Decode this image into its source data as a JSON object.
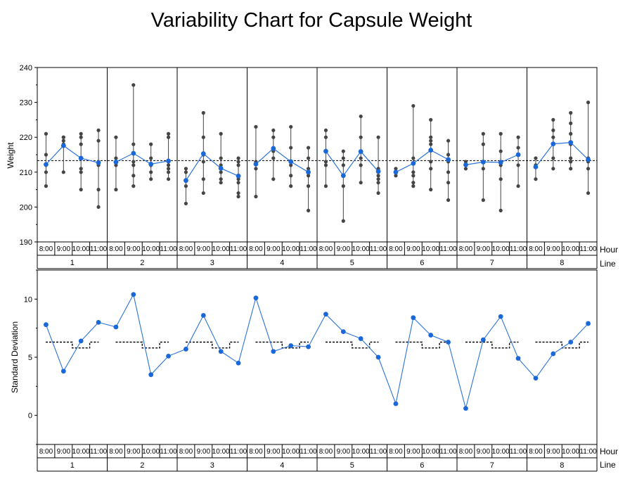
{
  "title": "Variability Chart for Capsule Weight",
  "axis_labels": {
    "weight_y": "Weight",
    "sd_y": "Standard Deviation",
    "hour": "Hour",
    "line": "Line"
  },
  "chart_data": [
    {
      "type": "scatter",
      "name": "weight-panel",
      "ylabel": "Weight",
      "ylim": [
        190,
        240
      ],
      "yticks": [
        190,
        200,
        210,
        220,
        230,
        240
      ],
      "grand_mean": 213.3,
      "groups": [
        "1",
        "2",
        "3",
        "4",
        "5",
        "6",
        "7",
        "8"
      ],
      "subgroups": [
        "8:00",
        "9:00",
        "10:00",
        "11:00"
      ],
      "group_label": "Line",
      "subgroup_label": "Hour",
      "points": [
        [
          [
            206,
            210,
            212,
            215,
            221
          ],
          [
            210,
            218,
            219,
            220,
            220
          ],
          [
            205,
            210,
            211,
            214,
            218,
            220,
            221
          ],
          [
            200,
            205,
            212,
            213,
            219,
            222
          ]
        ],
        [
          [
            205,
            212,
            213,
            214,
            220
          ],
          [
            206,
            209,
            212,
            213,
            218,
            235
          ],
          [
            208,
            210,
            212,
            214,
            218
          ],
          [
            208,
            210,
            211,
            212,
            213,
            220,
            221
          ]
        ],
        [
          [
            201,
            206,
            210,
            211
          ],
          [
            204,
            208,
            213,
            215,
            220,
            227
          ],
          [
            207,
            208,
            210,
            212,
            214,
            221
          ],
          [
            203,
            204,
            207,
            208,
            212,
            213,
            214
          ]
        ],
        [
          [
            203,
            211,
            213,
            223
          ],
          [
            208,
            214,
            216,
            220,
            222
          ],
          [
            206,
            209,
            212,
            213,
            217,
            223
          ],
          [
            199,
            206,
            209,
            211,
            214,
            217
          ]
        ],
        [
          [
            206,
            212,
            213,
            216,
            220,
            222
          ],
          [
            196,
            206,
            209,
            212,
            214,
            216
          ],
          [
            207,
            212,
            214,
            216,
            220,
            226
          ],
          [
            204,
            207,
            208,
            209,
            211,
            220
          ]
        ],
        [
          [
            209,
            210,
            211
          ],
          [
            206,
            207,
            209,
            210,
            214,
            229
          ],
          [
            205,
            211,
            213,
            218,
            219,
            220,
            225
          ],
          [
            202,
            207,
            210,
            213,
            215,
            219
          ]
        ],
        [
          [
            211,
            212,
            213
          ],
          [
            202,
            211,
            213,
            218,
            221
          ],
          [
            199,
            208,
            212,
            213,
            216,
            221
          ],
          [
            206,
            212,
            215,
            217,
            220
          ]
        ],
        [
          [
            208,
            212,
            214
          ],
          [
            211,
            214,
            218,
            220,
            222,
            225
          ],
          [
            211,
            213,
            214,
            218,
            221,
            224,
            227
          ],
          [
            204,
            211,
            213,
            214,
            230
          ]
        ]
      ],
      "means": [
        [
          212.2,
          217.6,
          214.0,
          212.7
        ],
        [
          212.9,
          215.4,
          212.3,
          213.2
        ],
        [
          207.6,
          215.3,
          211.1,
          208.9
        ],
        [
          212.3,
          216.8,
          213.0,
          210.0
        ],
        [
          216.0,
          209.0,
          215.9,
          210.2
        ],
        [
          210.0,
          212.5,
          216.3,
          213.6
        ],
        [
          212.1,
          212.9,
          212.8,
          215.0
        ],
        [
          211.5,
          218.1,
          218.5,
          213.6
        ]
      ]
    },
    {
      "type": "line",
      "name": "standard-deviation-panel",
      "ylabel": "Standard Deviation",
      "ylim": [
        -2.5,
        12.5
      ],
      "yticks": [
        0,
        5,
        10
      ],
      "groups": [
        "1",
        "2",
        "3",
        "4",
        "5",
        "6",
        "7",
        "8"
      ],
      "subgroups": [
        "8:00",
        "9:00",
        "10:00",
        "11:00"
      ],
      "values": [
        [
          7.8,
          3.8,
          6.4,
          8.0
        ],
        [
          7.6,
          10.4,
          3.5,
          5.1
        ],
        [
          5.7,
          8.6,
          5.5,
          4.5
        ],
        [
          10.1,
          5.5,
          6.0,
          5.9
        ],
        [
          8.7,
          7.2,
          6.6,
          5.0
        ],
        [
          1.0,
          8.4,
          6.9,
          6.3
        ],
        [
          0.6,
          6.5,
          8.5,
          4.9
        ],
        [
          3.2,
          5.3,
          6.3,
          7.9
        ]
      ],
      "limit_step": [
        6.3,
        6.3,
        5.8,
        6.3
      ]
    }
  ]
}
